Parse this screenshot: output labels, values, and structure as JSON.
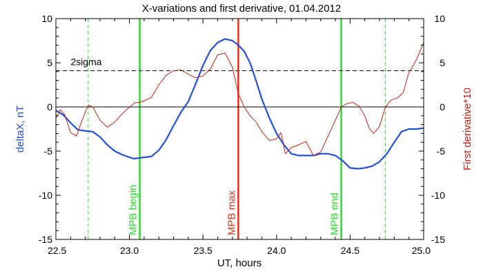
{
  "chart_data": {
    "type": "line",
    "title": "X-variations and first derivative, 01.04.2012",
    "xlabel": "UT, hours",
    "ylabel_left": "deltaX, nT",
    "ylabel_right": "First derivative*10",
    "xlim": [
      22.5,
      25.0
    ],
    "ylim": [
      -15,
      10
    ],
    "x_ticks": [
      "22.5",
      "23.0",
      "23.5",
      "24.0",
      "24.5",
      "25.0"
    ],
    "y_ticks": [
      "10",
      "5",
      "0",
      "-5",
      "-10",
      "-15"
    ],
    "colors": {
      "deltax": "#1f4fd8",
      "derivative": "#c8200e",
      "mpb_green": "#22e022",
      "mpb_max": "#e0301e",
      "axis": "#000000"
    },
    "series": [
      {
        "name": "deltaX, nT",
        "x": [
          22.5,
          22.55,
          22.6,
          22.65,
          22.7,
          22.75,
          22.8,
          22.85,
          22.9,
          22.95,
          23.0,
          23.03,
          23.06,
          23.1,
          23.15,
          23.2,
          23.25,
          23.3,
          23.35,
          23.4,
          23.45,
          23.5,
          23.55,
          23.6,
          23.65,
          23.7,
          23.74,
          23.78,
          23.82,
          23.86,
          23.9,
          23.95,
          24.0,
          24.05,
          24.1,
          24.15,
          24.2,
          24.25,
          24.3,
          24.35,
          24.4,
          24.45,
          24.5,
          24.55,
          24.6,
          24.65,
          24.7,
          24.75,
          24.8,
          24.85,
          24.9,
          24.95,
          25.0
        ],
        "values": [
          -0.4,
          -0.9,
          -1.8,
          -2.6,
          -2.7,
          -2.8,
          -3.4,
          -4.3,
          -5.0,
          -5.4,
          -5.7,
          -5.85,
          -5.8,
          -5.7,
          -5.6,
          -4.9,
          -3.7,
          -2.1,
          -0.6,
          0.6,
          2.6,
          4.7,
          6.4,
          7.3,
          7.7,
          7.5,
          7.0,
          6.3,
          5.0,
          3.0,
          0.9,
          -1.2,
          -3.0,
          -4.3,
          -5.3,
          -5.5,
          -5.5,
          -5.5,
          -5.3,
          -5.3,
          -5.5,
          -6.1,
          -6.9,
          -7.0,
          -6.9,
          -6.7,
          -6.2,
          -5.3,
          -4.0,
          -2.8,
          -2.5,
          -2.5,
          -2.4
        ]
      },
      {
        "name": "First derivative*10",
        "x": [
          22.5,
          22.53,
          22.56,
          22.6,
          22.64,
          22.68,
          22.72,
          22.75,
          22.8,
          22.85,
          22.9,
          22.95,
          23.0,
          23.04,
          23.07,
          23.1,
          23.15,
          23.2,
          23.25,
          23.3,
          23.35,
          23.4,
          23.45,
          23.5,
          23.55,
          23.6,
          23.65,
          23.7,
          23.74,
          23.78,
          23.82,
          23.86,
          23.9,
          23.95,
          24.0,
          24.03,
          24.06,
          24.1,
          24.15,
          24.2,
          24.25,
          24.3,
          24.35,
          24.4,
          24.44,
          24.48,
          24.52,
          24.56,
          24.6,
          24.63,
          24.66,
          24.7,
          24.74,
          24.78,
          24.82,
          24.86,
          24.9,
          24.95,
          25.0
        ],
        "values": [
          -1.3,
          -0.3,
          -0.9,
          -2.9,
          -3.3,
          -1.4,
          0.2,
          0.0,
          -1.5,
          -2.3,
          -1.7,
          -0.8,
          0.0,
          0.5,
          0.5,
          0.7,
          1.1,
          2.5,
          3.6,
          4.1,
          4.2,
          3.7,
          3.3,
          3.5,
          4.3,
          5.9,
          6.1,
          4.5,
          1.5,
          0.0,
          -1.0,
          -1.7,
          -2.8,
          -3.8,
          -3.6,
          -2.9,
          -5.3,
          -4.6,
          -4.3,
          -3.9,
          -5.5,
          -5.1,
          -3.3,
          -1.5,
          0.0,
          0.4,
          0.5,
          0.1,
          -1.0,
          -2.4,
          -3.0,
          -2.2,
          0.0,
          0.8,
          1.0,
          1.6,
          3.9,
          5.3,
          7.3
        ]
      }
    ],
    "reference_lines": {
      "zero": 0,
      "two_sigma": 4.1,
      "two_sigma_label": "2sigma"
    },
    "markers": [
      {
        "x": 23.07,
        "label": "MPB begin",
        "style": "solid",
        "color": "#22e022"
      },
      {
        "x": 23.74,
        "label": "MPB max",
        "style": "solid",
        "color": "#e0301e"
      },
      {
        "x": 24.44,
        "label": "MPB end",
        "style": "solid",
        "color": "#22e022"
      },
      {
        "x": 22.72,
        "label": "",
        "style": "dashed",
        "color": "#22e022"
      },
      {
        "x": 24.74,
        "label": "",
        "style": "dashed",
        "color": "#22e022"
      }
    ]
  }
}
